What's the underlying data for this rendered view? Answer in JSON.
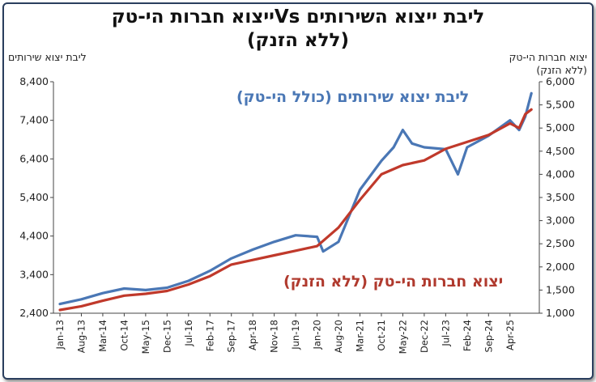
{
  "chart_data": {
    "type": "line",
    "title_line1": "ליבת ייצוא השירותים Vsייצוא חברות הי-טק",
    "title_line2": "(ללא הזנק)",
    "left_axis_title": "ליבת יצוא שירותים",
    "right_axis_title_line1": "יצוא חברות הי-טק",
    "right_axis_title_line2": "(ללא הזנק)",
    "left_axis": {
      "min": 2400,
      "max": 8400,
      "ticks": [
        "2,400",
        "3,400",
        "4,400",
        "5,400",
        "6,400",
        "7,400",
        "8,400"
      ]
    },
    "right_axis": {
      "min": 1000,
      "max": 6000,
      "ticks": [
        "1,000",
        "1,500",
        "2,000",
        "2,500",
        "3,000",
        "3,500",
        "4,000",
        "4,500",
        "5,000",
        "5,500",
        "6,000"
      ]
    },
    "x_ticks": [
      "Jan-13",
      "Aug-13",
      "Mar-14",
      "Oct-14",
      "May-15",
      "Dec-15",
      "Jul-16",
      "Feb-17",
      "Sep-17",
      "Apr-18",
      "Nov-18",
      "Jun-19",
      "Jan-20",
      "Aug-20",
      "Mar-21",
      "Oct-21",
      "May-22",
      "Dec-22",
      "Jul-23",
      "Feb-24",
      "Sep-24",
      "Apr-25"
    ],
    "series": [
      {
        "name": "ליבת יצוא שירותים (כולל הי-טק)",
        "axis": "left",
        "color": "#4a77b5",
        "points": [
          [
            "Jan-13",
            2640
          ],
          [
            "Aug-13",
            2760
          ],
          [
            "Mar-14",
            2920
          ],
          [
            "Oct-14",
            3040
          ],
          [
            "May-15",
            3000
          ],
          [
            "Dec-15",
            3060
          ],
          [
            "Jul-16",
            3240
          ],
          [
            "Feb-17",
            3500
          ],
          [
            "Sep-17",
            3820
          ],
          [
            "Apr-18",
            4050
          ],
          [
            "Nov-18",
            4250
          ],
          [
            "Jun-19",
            4420
          ],
          [
            "Jan-20",
            4380
          ],
          [
            "Mar-20",
            4000
          ],
          [
            "Aug-20",
            4250
          ],
          [
            "Mar-21",
            5600
          ],
          [
            "Oct-21",
            6350
          ],
          [
            "Feb-22",
            6700
          ],
          [
            "May-22",
            7150
          ],
          [
            "Aug-22",
            6800
          ],
          [
            "Dec-22",
            6700
          ],
          [
            "Jul-23",
            6650
          ],
          [
            "Nov-23",
            6000
          ],
          [
            "Feb-24",
            6700
          ],
          [
            "Sep-24",
            7000
          ],
          [
            "Apr-25",
            7400
          ],
          [
            "Jul-25",
            7150
          ],
          [
            "Sep-25",
            7500
          ],
          [
            "Nov-25",
            8100
          ]
        ]
      },
      {
        "name": "יצוא חברות הי-טק (ללא הזנק)",
        "axis": "right",
        "color": "#c0392b",
        "points": [
          [
            "Jan-13",
            1070
          ],
          [
            "Aug-13",
            1150
          ],
          [
            "Mar-14",
            1270
          ],
          [
            "Oct-14",
            1380
          ],
          [
            "May-15",
            1420
          ],
          [
            "Dec-15",
            1480
          ],
          [
            "Jul-16",
            1620
          ],
          [
            "Feb-17",
            1800
          ],
          [
            "Sep-17",
            2050
          ],
          [
            "Apr-18",
            2150
          ],
          [
            "Nov-18",
            2250
          ],
          [
            "Jun-19",
            2350
          ],
          [
            "Jan-20",
            2450
          ],
          [
            "Aug-20",
            2850
          ],
          [
            "Mar-21",
            3450
          ],
          [
            "Oct-21",
            4000
          ],
          [
            "May-22",
            4200
          ],
          [
            "Dec-22",
            4300
          ],
          [
            "Jul-23",
            4550
          ],
          [
            "Feb-24",
            4700
          ],
          [
            "Sep-24",
            4850
          ],
          [
            "Apr-25",
            5100
          ],
          [
            "Jul-25",
            5000
          ],
          [
            "Sep-25",
            5300
          ],
          [
            "Nov-25",
            5400
          ]
        ]
      }
    ],
    "annotations": [
      {
        "text": "ליבת יצוא שירותים (כולל הי-טק)",
        "series": 0
      },
      {
        "text": "יצוא חברות הי-טק (ללא הזנק)",
        "series": 1
      }
    ],
    "grid": false,
    "legend": "none"
  }
}
